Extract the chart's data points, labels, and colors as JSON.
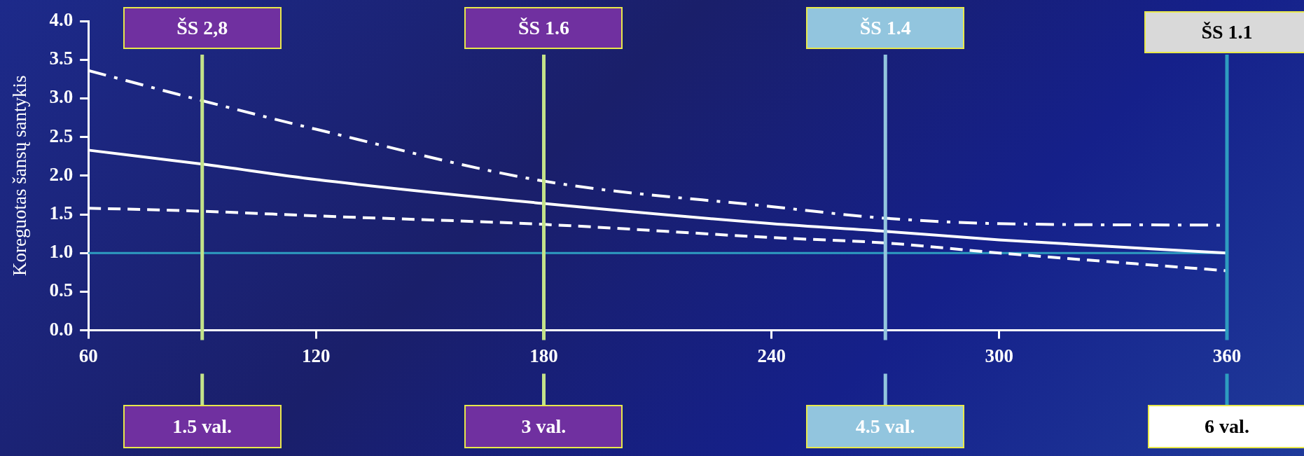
{
  "chart_data": {
    "type": "line",
    "ylabel": "Koreguotas šansų santykis",
    "x": [
      60,
      90,
      120,
      180,
      240,
      270,
      300,
      360
    ],
    "series": [
      {
        "color": "#ffffff",
        "line_style": "solid",
        "values": [
          2.33,
          2.15,
          1.95,
          1.64,
          1.38,
          1.28,
          1.17,
          1.0
        ]
      },
      {
        "color": "#ffffff",
        "line_style": "dashed",
        "values": [
          1.58,
          1.54,
          1.48,
          1.37,
          1.2,
          1.13,
          1.0,
          0.77
        ]
      },
      {
        "color": "#ffffff",
        "line_style": "dashdot",
        "values": [
          3.36,
          2.97,
          2.6,
          1.93,
          1.6,
          1.45,
          1.38,
          1.36
        ]
      }
    ],
    "xlim": [
      60,
      360
    ],
    "xticks": [
      60,
      120,
      180,
      240,
      300,
      360
    ],
    "ylim": [
      0,
      4
    ],
    "yticks": [
      {
        "value": 0,
        "label": "0.0"
      },
      {
        "value": 0.5,
        "label": "0.5"
      },
      {
        "value": 1,
        "label": "1.0"
      },
      {
        "value": 1.5,
        "label": "1.5"
      },
      {
        "value": 2,
        "label": "2.0"
      },
      {
        "value": 2.5,
        "label": "2.5"
      },
      {
        "value": 3,
        "label": "3.0"
      },
      {
        "value": 3.5,
        "label": "3.5"
      },
      {
        "value": 4,
        "label": "4.0"
      }
    ],
    "legend": false,
    "marker": "none",
    "ref_lines": [
      {
        "axis": "y",
        "value": 1,
        "color": "#2e9cc0"
      },
      {
        "axis": "x",
        "value": 90,
        "label": "ŠS 2,8",
        "color": "#c3e28a"
      },
      {
        "axis": "x",
        "value": 180,
        "label": "ŠS 1.6",
        "color": "#c3e28a"
      },
      {
        "axis": "x",
        "value": 270,
        "label": "ŠS 1.4",
        "color": "#92c5de"
      },
      {
        "axis": "x",
        "value": 360,
        "label": "ŠS 1.1",
        "color": "#2e9cc0"
      }
    ],
    "annotations": [
      "1.5 val.",
      "3 val.",
      "4.5 val.",
      "6 val."
    ]
  }
}
